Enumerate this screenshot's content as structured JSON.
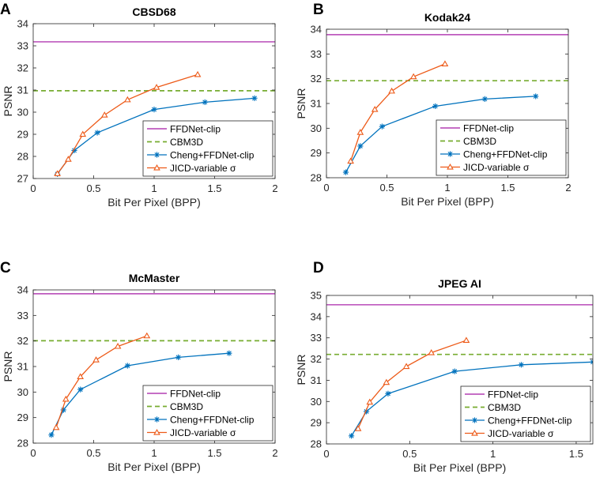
{
  "colors": {
    "ffdnet": "#BE59BE",
    "cbm3d": "#77AC30",
    "cheng": "#0072BD",
    "jicd": "#ED5A18",
    "axis": "#262626"
  },
  "legend": {
    "ffdnet": "FFDNet-clip",
    "cbm3d": "CBM3D",
    "cheng": "Cheng+FFDNet-clip",
    "jicd": "JICD-variable σ"
  },
  "chart_data": [
    {
      "panel": "A",
      "type": "line",
      "title": "CBSD68",
      "xlabel": "Bit Per Pixel (BPP)",
      "ylabel": "PSNR",
      "xlim": [
        0,
        2
      ],
      "ylim": [
        27,
        34
      ],
      "xticks": [
        0,
        0.5,
        1,
        1.5,
        2
      ],
      "xtick_labels": [
        "0",
        "0.5",
        "1",
        "1.5",
        "2"
      ],
      "yticks": [
        27,
        28,
        29,
        30,
        31,
        32,
        33,
        34
      ],
      "ytick_labels": [
        "27",
        "28",
        "29",
        "30",
        "31",
        "32",
        "33",
        "34"
      ],
      "legend_position": "bottom-right",
      "series": [
        {
          "key": "ffdnet",
          "name": "FFDNet-clip",
          "style": "solid",
          "marker": "none",
          "y": 33.18
        },
        {
          "key": "cbm3d",
          "name": "CBM3D",
          "style": "dashed",
          "marker": "none",
          "y": 30.97
        },
        {
          "key": "cheng",
          "name": "Cheng+FFDNet-clip",
          "style": "solid",
          "marker": "star",
          "x": [
            0.2,
            0.34,
            0.53,
            1.0,
            1.42,
            1.83
          ],
          "y": [
            27.2,
            28.27,
            29.07,
            30.12,
            30.45,
            30.63
          ]
        },
        {
          "key": "jicd",
          "name": "JICD-variable σ",
          "style": "solid",
          "marker": "triangle",
          "x": [
            0.2,
            0.29,
            0.41,
            0.59,
            0.78,
            1.02,
            1.36
          ],
          "y": [
            27.22,
            27.87,
            29.0,
            29.87,
            30.56,
            31.12,
            31.7
          ]
        }
      ]
    },
    {
      "panel": "B",
      "type": "line",
      "title": "Kodak24",
      "xlabel": "Bit Per Pixel (BPP)",
      "ylabel": "PSNR",
      "xlim": [
        0,
        2
      ],
      "ylim": [
        28,
        34
      ],
      "xticks": [
        0,
        0.5,
        1,
        1.5,
        2
      ],
      "xtick_labels": [
        "0",
        "0.5",
        "1",
        "1.5",
        "2"
      ],
      "yticks": [
        28,
        29,
        30,
        31,
        32,
        33,
        34
      ],
      "ytick_labels": [
        "28",
        "29",
        "30",
        "31",
        "32",
        "33",
        "34"
      ],
      "legend_position": "bottom-right",
      "series": [
        {
          "key": "ffdnet",
          "name": "FFDNet-clip",
          "style": "solid",
          "marker": "none",
          "y": 33.78
        },
        {
          "key": "cbm3d",
          "name": "CBM3D",
          "style": "dashed",
          "marker": "none",
          "y": 31.92
        },
        {
          "key": "cheng",
          "name": "Cheng+FFDNet-clip",
          "style": "solid",
          "marker": "star",
          "x": [
            0.16,
            0.28,
            0.46,
            0.9,
            1.31,
            1.73
          ],
          "y": [
            28.22,
            29.28,
            30.07,
            30.89,
            31.18,
            31.29
          ]
        },
        {
          "key": "jicd",
          "name": "JICD-variable σ",
          "style": "solid",
          "marker": "triangle",
          "x": [
            0.2,
            0.28,
            0.4,
            0.54,
            0.72,
            0.98
          ],
          "y": [
            28.67,
            29.83,
            30.76,
            31.5,
            32.08,
            32.6
          ]
        }
      ]
    },
    {
      "panel": "C",
      "type": "line",
      "title": "McMaster",
      "xlabel": "Bit Per Pixel (BPP)",
      "ylabel": "PSNR",
      "xlim": [
        0,
        2
      ],
      "ylim": [
        28,
        34
      ],
      "xticks": [
        0,
        0.5,
        1,
        1.5,
        2
      ],
      "xtick_labels": [
        "0",
        "0.5",
        "1",
        "1.5",
        "2"
      ],
      "yticks": [
        28,
        29,
        30,
        31,
        32,
        33,
        34
      ],
      "ytick_labels": [
        "28",
        "29",
        "30",
        "31",
        "32",
        "33",
        "34"
      ],
      "legend_position": "bottom-right",
      "series": [
        {
          "key": "ffdnet",
          "name": "FFDNet-clip",
          "style": "solid",
          "marker": "none",
          "y": 33.85
        },
        {
          "key": "cbm3d",
          "name": "CBM3D",
          "style": "dashed",
          "marker": "none",
          "y": 32.01
        },
        {
          "key": "cheng",
          "name": "Cheng+FFDNet-clip",
          "style": "solid",
          "marker": "star",
          "x": [
            0.15,
            0.25,
            0.39,
            0.78,
            1.2,
            1.62
          ],
          "y": [
            28.32,
            29.3,
            30.1,
            31.03,
            31.36,
            31.52
          ]
        },
        {
          "key": "jicd",
          "name": "JICD-variable σ",
          "style": "solid",
          "marker": "triangle",
          "x": [
            0.19,
            0.27,
            0.39,
            0.52,
            0.7,
            0.94
          ],
          "y": [
            28.61,
            29.72,
            30.6,
            31.26,
            31.79,
            32.2
          ]
        }
      ]
    },
    {
      "panel": "D",
      "type": "line",
      "title": "JPEG AI",
      "xlabel": "Bit Per Pixel (BPP)",
      "ylabel": "PSNR",
      "xlim": [
        0,
        1.6
      ],
      "ylim": [
        28,
        35
      ],
      "xticks": [
        0,
        0.5,
        1,
        1.5
      ],
      "xtick_labels": [
        "0",
        "0.5",
        "1",
        "1.5"
      ],
      "yticks": [
        28,
        29,
        30,
        31,
        32,
        33,
        34,
        35
      ],
      "ytick_labels": [
        "28",
        "29",
        "30",
        "31",
        "32",
        "33",
        "34",
        "35"
      ],
      "legend_position": "bottom-right",
      "series": [
        {
          "key": "ffdnet",
          "name": "FFDNet-clip",
          "style": "solid",
          "marker": "none",
          "y": 34.56
        },
        {
          "key": "cbm3d",
          "name": "CBM3D",
          "style": "dashed",
          "marker": "none",
          "y": 32.22
        },
        {
          "key": "cheng",
          "name": "Cheng+FFDNet-clip",
          "style": "solid",
          "marker": "star",
          "x": [
            0.15,
            0.24,
            0.37,
            0.77,
            1.17,
            1.6
          ],
          "y": [
            28.38,
            29.53,
            30.37,
            31.42,
            31.73,
            31.86
          ]
        },
        {
          "key": "jicd",
          "name": "JICD-variable σ",
          "style": "solid",
          "marker": "triangle",
          "x": [
            0.19,
            0.26,
            0.36,
            0.48,
            0.63,
            0.84
          ],
          "y": [
            28.72,
            29.97,
            30.9,
            31.65,
            32.3,
            32.88
          ]
        }
      ]
    }
  ]
}
